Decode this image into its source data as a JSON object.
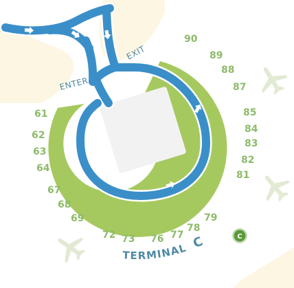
{
  "colors": {
    "land": "#fdf6e3",
    "land_inner": "#f7ecd1",
    "concourse": "#a6c95f",
    "road": "#3b8fc9",
    "road_edge": "#ffffff",
    "building": "#f2f2f2",
    "gate_text": "#8dbb6a",
    "direction_text": "#4f8aa3",
    "terminal_text": "#4f8aa3",
    "plane": "#e3ead4",
    "badge": "#5c9a3a",
    "badge_ring": "#c9d9b8"
  },
  "icons": [
    "airplane-icon",
    "airplane-icon",
    "airplane-icon",
    "terminal-badge-icon",
    "arrow-icon"
  ],
  "labels": {
    "enter": "ENTER",
    "exit": "EXIT",
    "terminal": "TERMINAL",
    "terminal_letter": "C",
    "badge_letter": "C"
  },
  "gates": [
    "90",
    "89",
    "88",
    "87",
    "85",
    "84",
    "83",
    "82",
    "81",
    "79",
    "78",
    "77",
    "76",
    "73",
    "72",
    "69",
    "68",
    "67",
    "64",
    "63",
    "62",
    "61"
  ]
}
